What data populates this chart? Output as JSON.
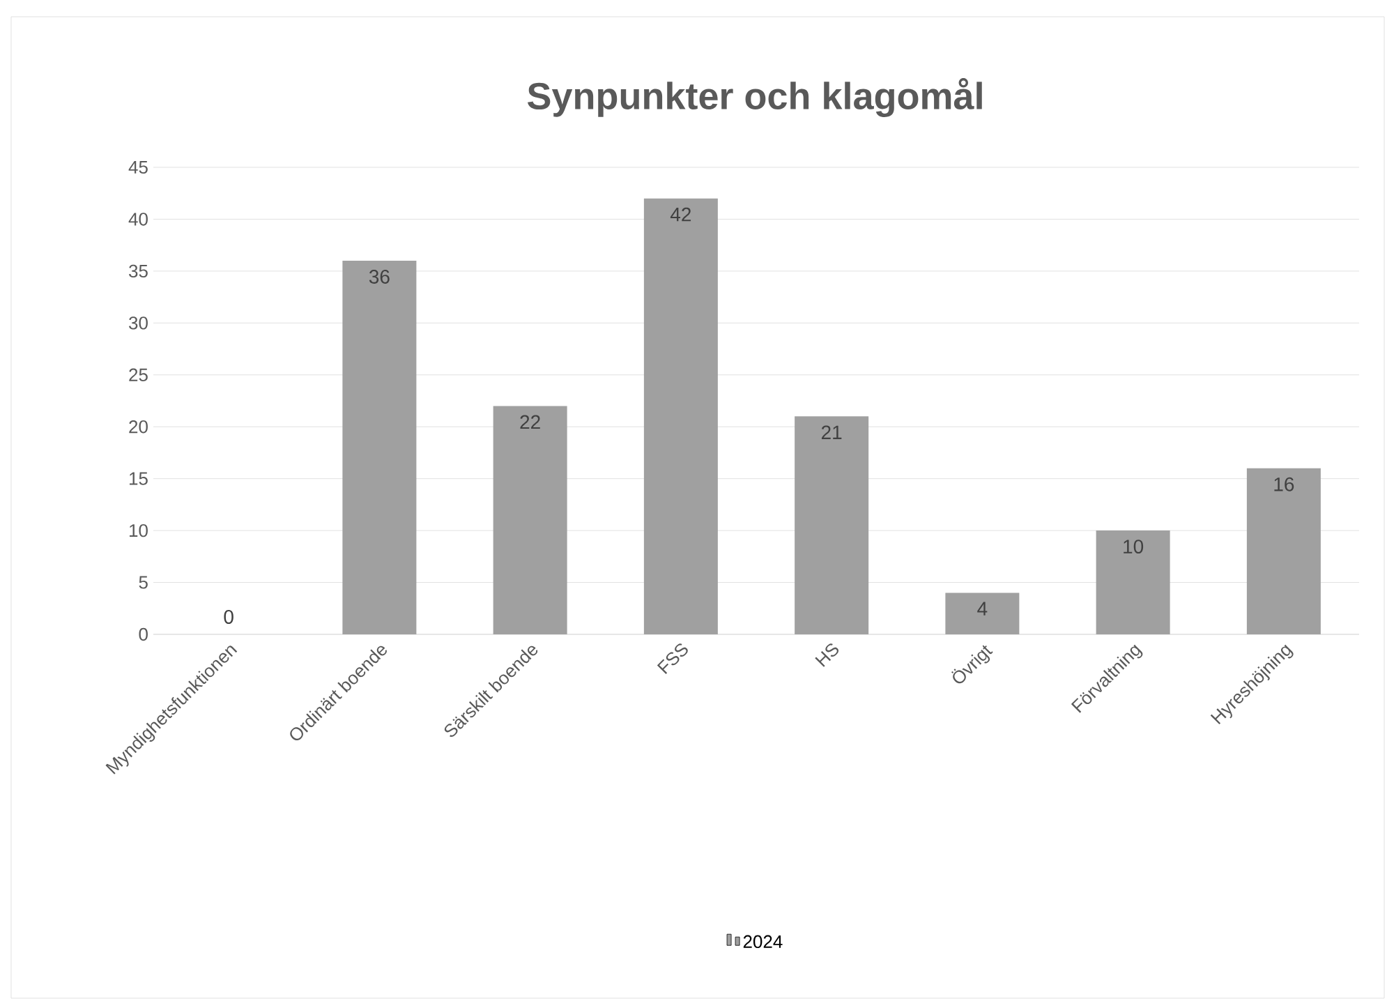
{
  "chart_data": {
    "type": "bar",
    "title": "Synpunkter och klagomål",
    "categories": [
      "Myndighetsfunktionen",
      "Ordinärt boende",
      "Särskilt boende",
      "FSS",
      "HS",
      "Övrigt",
      "Förvaltning",
      "Hyreshöjning"
    ],
    "series": [
      {
        "name": "2024",
        "color": "#a0a0a0",
        "values": [
          0,
          36,
          22,
          42,
          21,
          4,
          10,
          16
        ]
      }
    ],
    "ylim": [
      0,
      45
    ],
    "yticks": [
      0,
      5,
      10,
      15,
      20,
      25,
      30,
      35,
      40,
      45
    ],
    "grid": "y",
    "legend": "bottom",
    "data_labels": true
  }
}
